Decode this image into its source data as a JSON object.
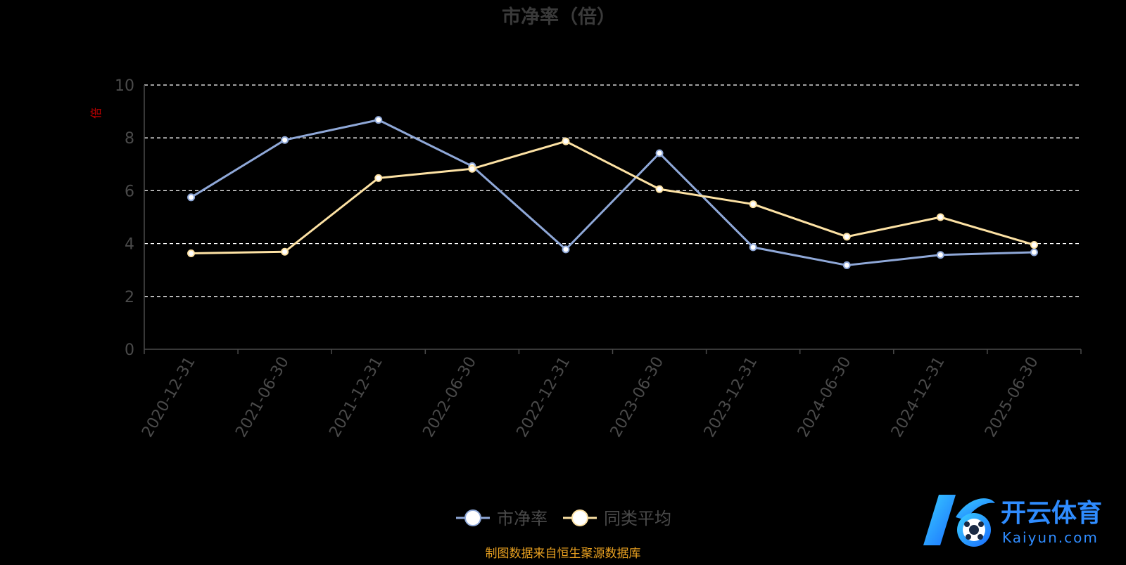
{
  "chart_data": {
    "type": "line",
    "title": "市净率（倍）",
    "ylabel": "倍",
    "ylim": [
      0,
      10
    ],
    "yticks": [
      0,
      2,
      4,
      6,
      8,
      10
    ],
    "grid": true,
    "legend_position": "bottom-center",
    "categories": [
      "2020-12-31",
      "2021-06-30",
      "2021-12-31",
      "2022-06-30",
      "2022-12-31",
      "2023-06-30",
      "2023-12-31",
      "2024-06-30",
      "2024-12-31",
      "2025-06-30"
    ],
    "series": [
      {
        "name": "市净率",
        "color": "#8fa8d8",
        "values": [
          5.75,
          7.92,
          8.68,
          6.93,
          3.78,
          7.42,
          3.86,
          3.18,
          3.57,
          3.67
        ]
      },
      {
        "name": "同类平均",
        "color": "#fde2a4",
        "values": [
          3.63,
          3.69,
          6.48,
          6.83,
          7.87,
          6.06,
          5.49,
          4.26,
          5.0,
          3.95
        ]
      }
    ],
    "source_note": "制图数据来自恒生聚源数据库"
  },
  "colors": {
    "background": "#000000",
    "title": "#3a3a3a",
    "axis": "#4a4a4a",
    "grid": "#ffffff",
    "ylabel": "#c00000",
    "source_note": "#e8a020"
  },
  "watermark": {
    "brand_cn": "开云体育",
    "brand_en": "Kaiyun.com"
  }
}
